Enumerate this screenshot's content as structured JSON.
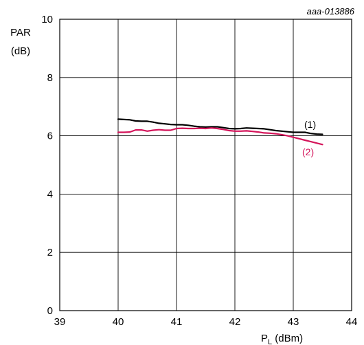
{
  "chart_data": {
    "type": "line",
    "reference_code": "aaa-013886",
    "ylabel_line1": "PAR",
    "ylabel_line2": "(dB)",
    "xlabel_main": "P",
    "xlabel_sub": "L",
    "xlabel_unit": " (dBm)",
    "xlim": [
      39,
      44
    ],
    "ylim": [
      0,
      10
    ],
    "x_ticks": [
      39,
      40,
      41,
      42,
      43,
      44
    ],
    "y_ticks": [
      0,
      2,
      4,
      6,
      8,
      10
    ],
    "grid": true,
    "series": [
      {
        "name": "(1)",
        "color": "#000000",
        "x": [
          40.0,
          40.1,
          40.2,
          40.3,
          40.4,
          40.5,
          40.6,
          40.7,
          40.8,
          40.9,
          41.0,
          41.1,
          41.2,
          41.3,
          41.4,
          41.5,
          41.6,
          41.7,
          41.8,
          41.9,
          42.0,
          42.1,
          42.2,
          42.3,
          42.4,
          42.5,
          42.6,
          42.7,
          42.8,
          42.9,
          43.0,
          43.1,
          43.2,
          43.3,
          43.4,
          43.5
        ],
        "y": [
          6.57,
          6.56,
          6.55,
          6.51,
          6.5,
          6.5,
          6.47,
          6.43,
          6.41,
          6.39,
          6.38,
          6.38,
          6.36,
          6.33,
          6.31,
          6.3,
          6.31,
          6.31,
          6.28,
          6.25,
          6.24,
          6.25,
          6.27,
          6.26,
          6.25,
          6.24,
          6.21,
          6.18,
          6.16,
          6.14,
          6.12,
          6.12,
          6.12,
          6.08,
          6.06,
          6.05
        ]
      },
      {
        "name": "(2)",
        "color": "#d4145a",
        "x": [
          40.0,
          40.1,
          40.2,
          40.3,
          40.4,
          40.5,
          40.6,
          40.7,
          40.8,
          40.9,
          41.0,
          41.1,
          41.2,
          41.3,
          41.4,
          41.5,
          41.6,
          41.7,
          41.8,
          41.9,
          42.0,
          42.1,
          42.2,
          42.3,
          42.4,
          42.5,
          42.6,
          42.7,
          42.8,
          42.9,
          43.0,
          43.1,
          43.2,
          43.3,
          43.4,
          43.5
        ],
        "y": [
          6.12,
          6.12,
          6.13,
          6.2,
          6.2,
          6.16,
          6.19,
          6.21,
          6.19,
          6.19,
          6.25,
          6.26,
          6.25,
          6.25,
          6.26,
          6.25,
          6.27,
          6.25,
          6.22,
          6.18,
          6.16,
          6.16,
          6.17,
          6.15,
          6.13,
          6.1,
          6.09,
          6.07,
          6.04,
          6.0,
          5.95,
          5.9,
          5.85,
          5.8,
          5.75,
          5.7
        ]
      }
    ]
  }
}
